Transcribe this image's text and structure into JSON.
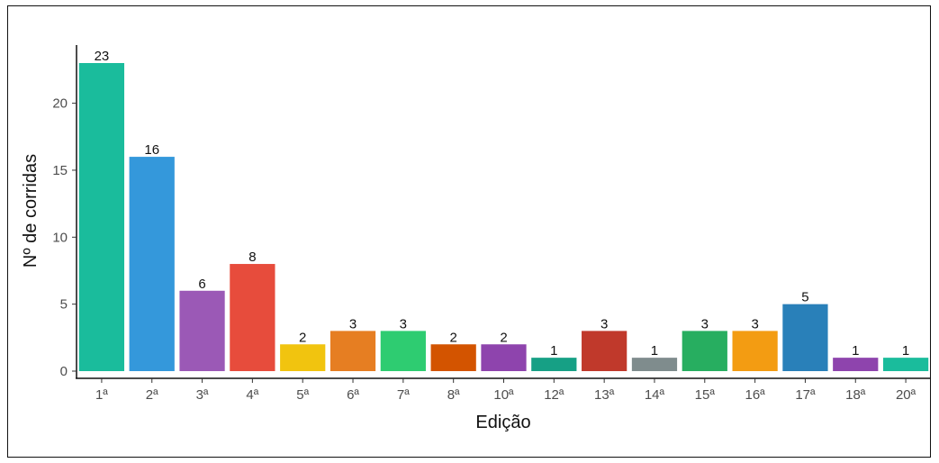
{
  "chart_data": {
    "type": "bar",
    "title": "",
    "xlabel": "Edição",
    "ylabel": "Nº de corridas",
    "categories": [
      "1ª",
      "2ª",
      "3ª",
      "4ª",
      "5ª",
      "6ª",
      "7ª",
      "8ª",
      "10ª",
      "12ª",
      "13ª",
      "14ª",
      "15ª",
      "16ª",
      "17ª",
      "18ª",
      "20ª"
    ],
    "values": [
      23,
      16,
      6,
      8,
      2,
      3,
      3,
      2,
      2,
      1,
      3,
      1,
      3,
      3,
      5,
      1,
      1
    ],
    "colors": [
      "#1abc9c",
      "#3498db",
      "#9b59b6",
      "#e74c3c",
      "#f1c40f",
      "#e67e22",
      "#2ecc71",
      "#d35400",
      "#8e44ad",
      "#16a085",
      "#c0392b",
      "#7f8c8d",
      "#27ae60",
      "#f39c12",
      "#2980b9",
      "#8e44ad",
      "#1abc9c"
    ],
    "yticks": [
      0,
      5,
      10,
      15,
      20
    ],
    "ylim": [
      0,
      24
    ],
    "grid": false,
    "legend": "none"
  }
}
